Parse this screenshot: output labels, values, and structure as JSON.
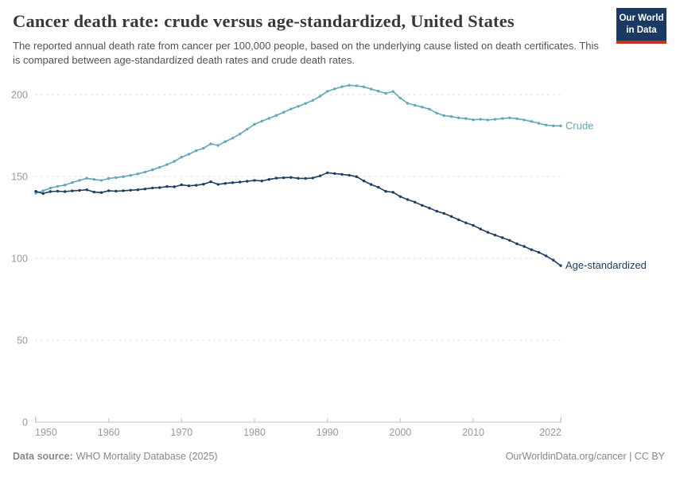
{
  "header": {
    "title": "Cancer death rate: crude versus age-standardized, United States",
    "subtitle": "The reported annual death rate from cancer per 100,000 people, based on the underlying cause listed on death certificates. This is compared between age-standardized death rates and crude death rates.",
    "logo": {
      "line1": "Our World",
      "line2": "in Data"
    }
  },
  "footer": {
    "source_label": "Data source:",
    "source_value": "WHO Mortality Database (2025)",
    "credit": "OurWorldinData.org/cancer | CC BY"
  },
  "theme": {
    "title_color": "#383838",
    "subtitle_color": "#535353",
    "tick_color": "#999999",
    "grid_color": "#dcdcdc",
    "axis_color": "#c3c3c3",
    "footer_color": "#878787",
    "logo_bg": "#1b3a63",
    "logo_red": "#cb3022"
  },
  "chart_data": {
    "type": "line",
    "title": "Cancer death rate: crude versus age-standardized, United States",
    "xlabel": "",
    "ylabel": "",
    "grid": "horizontal-dashed",
    "legend_position": "right-end-labels",
    "xlim": [
      1950,
      2022
    ],
    "ylim": [
      0,
      200
    ],
    "xticks": [
      1950,
      1960,
      1970,
      1980,
      1990,
      2000,
      2010,
      2022
    ],
    "yticks": [
      0,
      50,
      100,
      150,
      200
    ],
    "years": [
      1950,
      1951,
      1952,
      1953,
      1954,
      1955,
      1956,
      1957,
      1958,
      1959,
      1960,
      1961,
      1962,
      1963,
      1964,
      1965,
      1966,
      1967,
      1968,
      1969,
      1970,
      1971,
      1972,
      1973,
      1974,
      1975,
      1976,
      1977,
      1978,
      1979,
      1980,
      1981,
      1982,
      1983,
      1984,
      1985,
      1986,
      1987,
      1988,
      1989,
      1990,
      1991,
      1992,
      1993,
      1994,
      1995,
      1996,
      1997,
      1998,
      1999,
      2000,
      2001,
      2002,
      2003,
      2004,
      2005,
      2006,
      2007,
      2008,
      2009,
      2010,
      2011,
      2012,
      2013,
      2014,
      2015,
      2016,
      2017,
      2018,
      2019,
      2020,
      2021,
      2022
    ],
    "series": [
      {
        "name": "Crude",
        "color": "#61a8b6",
        "values": [
          139.8,
          141.2,
          142.9,
          144.0,
          144.8,
          146.3,
          147.6,
          148.9,
          148.2,
          147.6,
          148.8,
          149.3,
          149.9,
          150.7,
          151.6,
          152.7,
          154.1,
          155.6,
          157.3,
          159.2,
          161.8,
          163.6,
          165.8,
          167.3,
          169.9,
          169.0,
          171.3,
          173.4,
          175.9,
          178.9,
          181.9,
          183.8,
          185.5,
          187.3,
          189.2,
          191.2,
          192.8,
          194.6,
          196.5,
          199.0,
          202.0,
          203.5,
          204.8,
          205.7,
          205.4,
          204.7,
          203.4,
          202.1,
          200.8,
          201.9,
          197.9,
          194.7,
          193.5,
          192.4,
          191.1,
          188.7,
          187.2,
          186.6,
          185.8,
          185.4,
          184.6,
          184.9,
          184.5,
          184.9,
          185.4,
          185.8,
          185.3,
          184.5,
          183.6,
          182.5,
          181.4,
          180.9,
          180.9
        ]
      },
      {
        "name": "Age-standardized",
        "color": "#1d3d63",
        "values": [
          140.9,
          139.6,
          140.8,
          141.0,
          140.8,
          141.2,
          141.5,
          141.9,
          140.5,
          140.2,
          141.3,
          141.0,
          141.3,
          141.6,
          141.9,
          142.4,
          143.0,
          143.2,
          143.9,
          143.7,
          144.9,
          144.3,
          144.6,
          145.3,
          146.8,
          145.2,
          145.8,
          146.2,
          146.6,
          147.1,
          147.6,
          147.3,
          148.2,
          149.0,
          149.2,
          149.4,
          148.9,
          148.8,
          149.1,
          150.4,
          152.3,
          151.8,
          151.3,
          150.8,
          149.9,
          147.3,
          145.1,
          143.4,
          140.9,
          140.4,
          137.7,
          135.9,
          134.3,
          132.4,
          130.7,
          128.8,
          127.5,
          125.6,
          123.6,
          121.7,
          120.2,
          117.9,
          115.9,
          114.2,
          112.6,
          111.0,
          108.9,
          107.3,
          105.3,
          103.7,
          101.5,
          98.9,
          95.6
        ]
      }
    ]
  }
}
